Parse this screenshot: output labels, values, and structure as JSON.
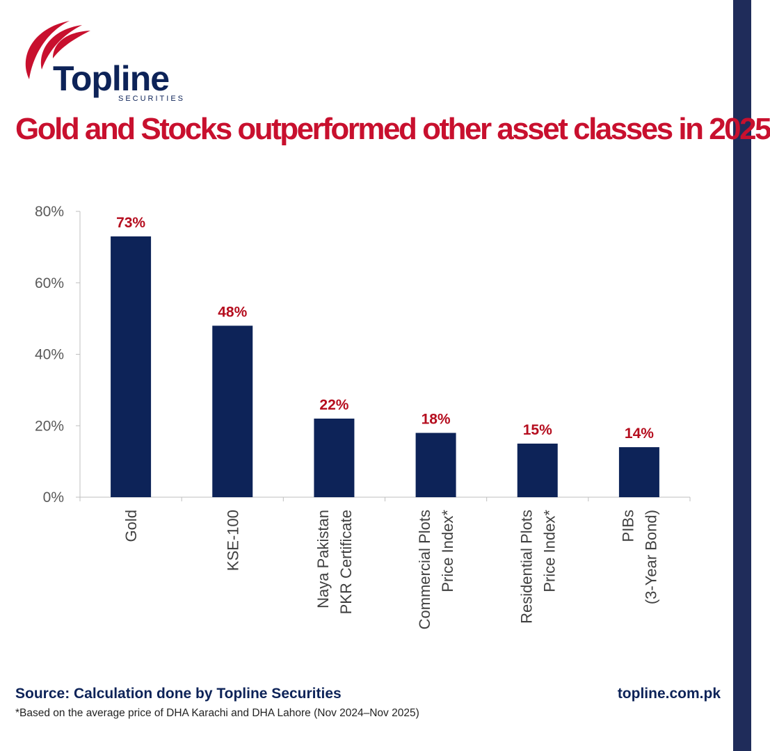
{
  "brand": {
    "name": "Topline",
    "subtitle": "SECURITIES",
    "navy": "#0d2358",
    "red": "#c8102e",
    "strip_color": "#1f2c5a"
  },
  "title": "Gold and Stocks outperformed other asset classes in 2025",
  "chart_data": {
    "type": "bar",
    "categories": [
      [
        "Gold"
      ],
      [
        "KSE-100"
      ],
      [
        "Naya Pakistan",
        "PKR Certificate"
      ],
      [
        "Commercial Plots",
        "Price Index*"
      ],
      [
        "Residential Plots",
        "Price Index*"
      ],
      [
        "PIBs",
        "(3-Year Bond)"
      ]
    ],
    "values": [
      73,
      48,
      22,
      18,
      15,
      14
    ],
    "value_labels": [
      "73%",
      "48%",
      "22%",
      "18%",
      "15%",
      "14%"
    ],
    "ylim": [
      0,
      80
    ],
    "yticks": [
      0,
      20,
      40,
      60,
      80
    ],
    "ytick_labels": [
      "0%",
      "20%",
      "40%",
      "60%",
      "80%"
    ],
    "xlabel": "",
    "ylabel": "",
    "grid": false,
    "bar_color": "#0d2358",
    "label_color": "#b50d1e"
  },
  "footer": {
    "source": "Source: Calculation done by Topline Securities",
    "footnote": "*Based on the average price of DHA Karachi and DHA Lahore (Nov 2024–Nov 2025)",
    "website": "topline.com.pk"
  }
}
